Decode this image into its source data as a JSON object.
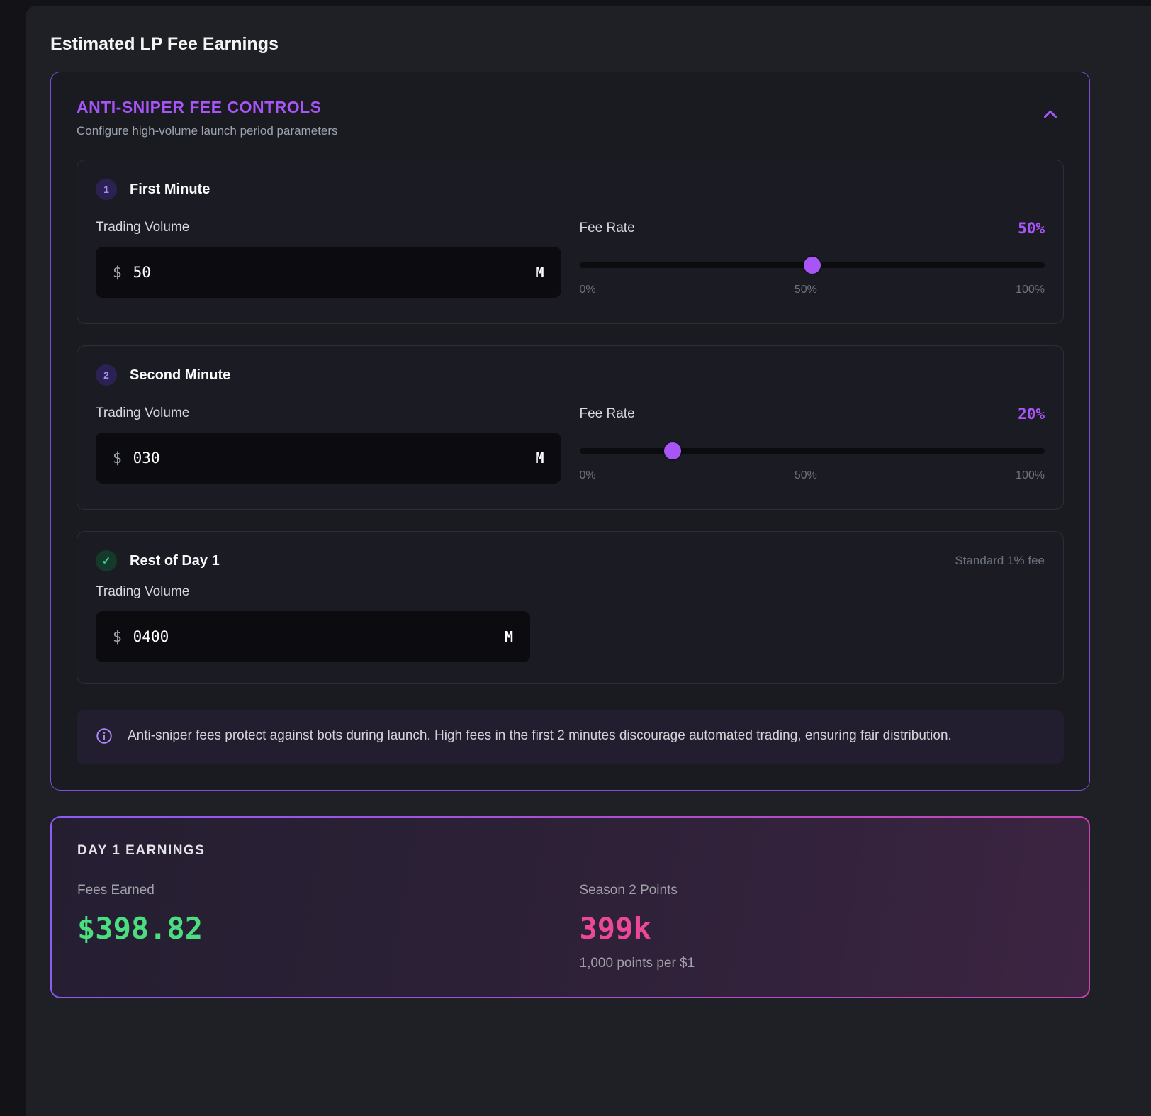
{
  "page": {
    "title": "Estimated LP Fee Earnings"
  },
  "panel": {
    "title": "ANTI-SNIPER FEE CONTROLS",
    "subtitle": "Configure high-volume launch period parameters",
    "sections": [
      {
        "badge": "1",
        "title": "First Minute",
        "volume_label": "Trading Volume",
        "currency": "$",
        "volume_value": "50",
        "unit": "M",
        "fee_label": "Fee Rate",
        "fee_value": "50%",
        "fee_percent": 50,
        "scale": {
          "min": "0%",
          "mid": "50%",
          "max": "100%"
        }
      },
      {
        "badge": "2",
        "title": "Second Minute",
        "volume_label": "Trading Volume",
        "currency": "$",
        "volume_value": "030",
        "unit": "M",
        "fee_label": "Fee Rate",
        "fee_value": "20%",
        "fee_percent": 20,
        "scale": {
          "min": "0%",
          "mid": "50%",
          "max": "100%"
        }
      },
      {
        "badge": "check",
        "title": "Rest of Day 1",
        "note": "Standard 1% fee",
        "volume_label": "Trading Volume",
        "currency": "$",
        "volume_value": "0400",
        "unit": "M"
      }
    ],
    "info": "Anti-sniper fees protect against bots during launch. High fees in the first 2 minutes discourage automated trading, ensuring fair distribution."
  },
  "earnings": {
    "title": "DAY 1 EARNINGS",
    "fees_label": "Fees Earned",
    "fees_value": "$398.82",
    "points_label": "Season 2 Points",
    "points_value": "399k",
    "points_note": "1,000 points per $1"
  },
  "colors": {
    "accent_purple": "#a855f7",
    "success_green": "#4ade80",
    "points_pink": "#ec4899"
  }
}
